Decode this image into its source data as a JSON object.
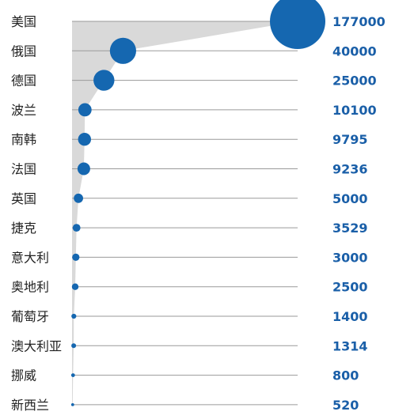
{
  "colors": {
    "bubble": "#1567B0",
    "value_text": "#1A5FA8",
    "area": "#D9D9D9",
    "gridline": "#9A9A9A"
  },
  "chart_data": {
    "type": "scatter",
    "encoding": "bubble",
    "categories": [
      "美国",
      "俄国",
      "德国",
      "波兰",
      "南韩",
      "法国",
      "英国",
      "捷克",
      "意大利",
      "奥地利",
      "葡萄牙",
      "澳大利亚",
      "挪威",
      "新西兰"
    ],
    "values": [
      177000,
      40000,
      25000,
      10100,
      9795,
      9236,
      5000,
      3529,
      3000,
      2500,
      1400,
      1314,
      800,
      520
    ],
    "value_labels": [
      "177000",
      "40000",
      "25000",
      "10100",
      "9795",
      "9236",
      "5000",
      "3529",
      "3000",
      "2500",
      "1400",
      "1314",
      "800",
      "520"
    ],
    "xlim": [
      0,
      177000
    ],
    "grid": true,
    "legend": "none"
  }
}
